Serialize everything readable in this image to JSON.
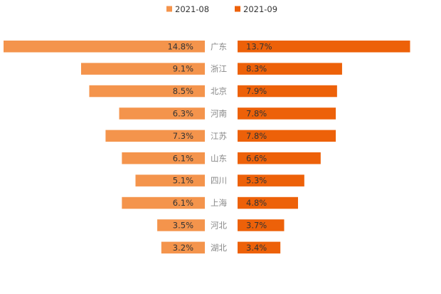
{
  "chart_data": {
    "type": "bar",
    "orientation": "horizontal-butterfly",
    "title": "",
    "legend_position": "top-center",
    "categories": [
      "广东",
      "浙江",
      "北京",
      "河南",
      "江苏",
      "山东",
      "四川",
      "上海",
      "河北",
      "湖北"
    ],
    "series": [
      {
        "name": "2021-08",
        "side": "left",
        "color": "#f4944c",
        "values": [
          14.8,
          9.1,
          8.5,
          6.3,
          7.3,
          6.1,
          5.1,
          6.1,
          3.5,
          3.2
        ],
        "labels": [
          "14.8%",
          "9.1%",
          "8.5%",
          "6.3%",
          "7.3%",
          "6.1%",
          "5.1%",
          "6.1%",
          "3.5%",
          "3.2%"
        ]
      },
      {
        "name": "2021-09",
        "side": "right",
        "color": "#ed6109",
        "values": [
          13.7,
          8.3,
          7.9,
          7.8,
          7.8,
          6.6,
          5.3,
          4.8,
          3.7,
          3.4
        ],
        "labels": [
          "13.7%",
          "8.3%",
          "7.9%",
          "7.8%",
          "7.8%",
          "6.6%",
          "5.3%",
          "4.8%",
          "3.7%",
          "3.4%"
        ]
      }
    ],
    "unit": "%",
    "xlim": [
      0,
      14.8
    ],
    "grid": false
  }
}
